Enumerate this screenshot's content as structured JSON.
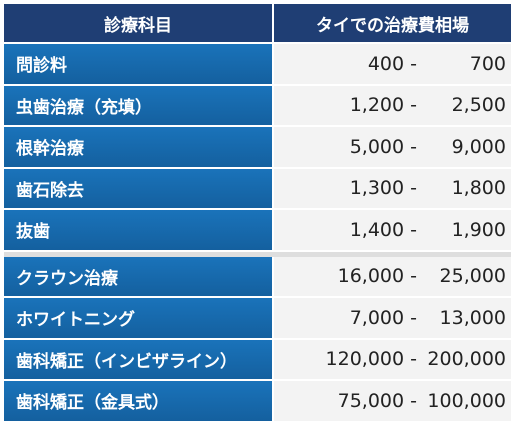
{
  "header": {
    "subject": "診療科目",
    "price": "タイでの治療費相場"
  },
  "rows": [
    {
      "subject": "問診料",
      "low": "400 -",
      "high": "700"
    },
    {
      "subject": "虫歯治療（充填）",
      "low": "1,200 -",
      "high": "2,500"
    },
    {
      "subject": "根幹治療",
      "low": "5,000 -",
      "high": "9,000"
    },
    {
      "subject": "歯石除去",
      "low": "1,300 -",
      "high": "1,800"
    },
    {
      "subject": "抜歯",
      "low": "1,400 -",
      "high": "1,900"
    },
    {
      "subject": "クラウン治療",
      "low": "16,000 -",
      "high": "25,000"
    },
    {
      "subject": "ホワイトニング",
      "low": "7,000 -",
      "high": "13,000"
    },
    {
      "subject": "歯科矯正（インビザライン）",
      "low": "120,000 -",
      "high": "200,000"
    },
    {
      "subject": "歯科矯正（金具式）",
      "low": "75,000 -",
      "high": "100,000"
    }
  ],
  "colors": {
    "header": "#1f3e74",
    "subject_cell": "#1a73ba",
    "price_cell": "#f3f3f3"
  }
}
